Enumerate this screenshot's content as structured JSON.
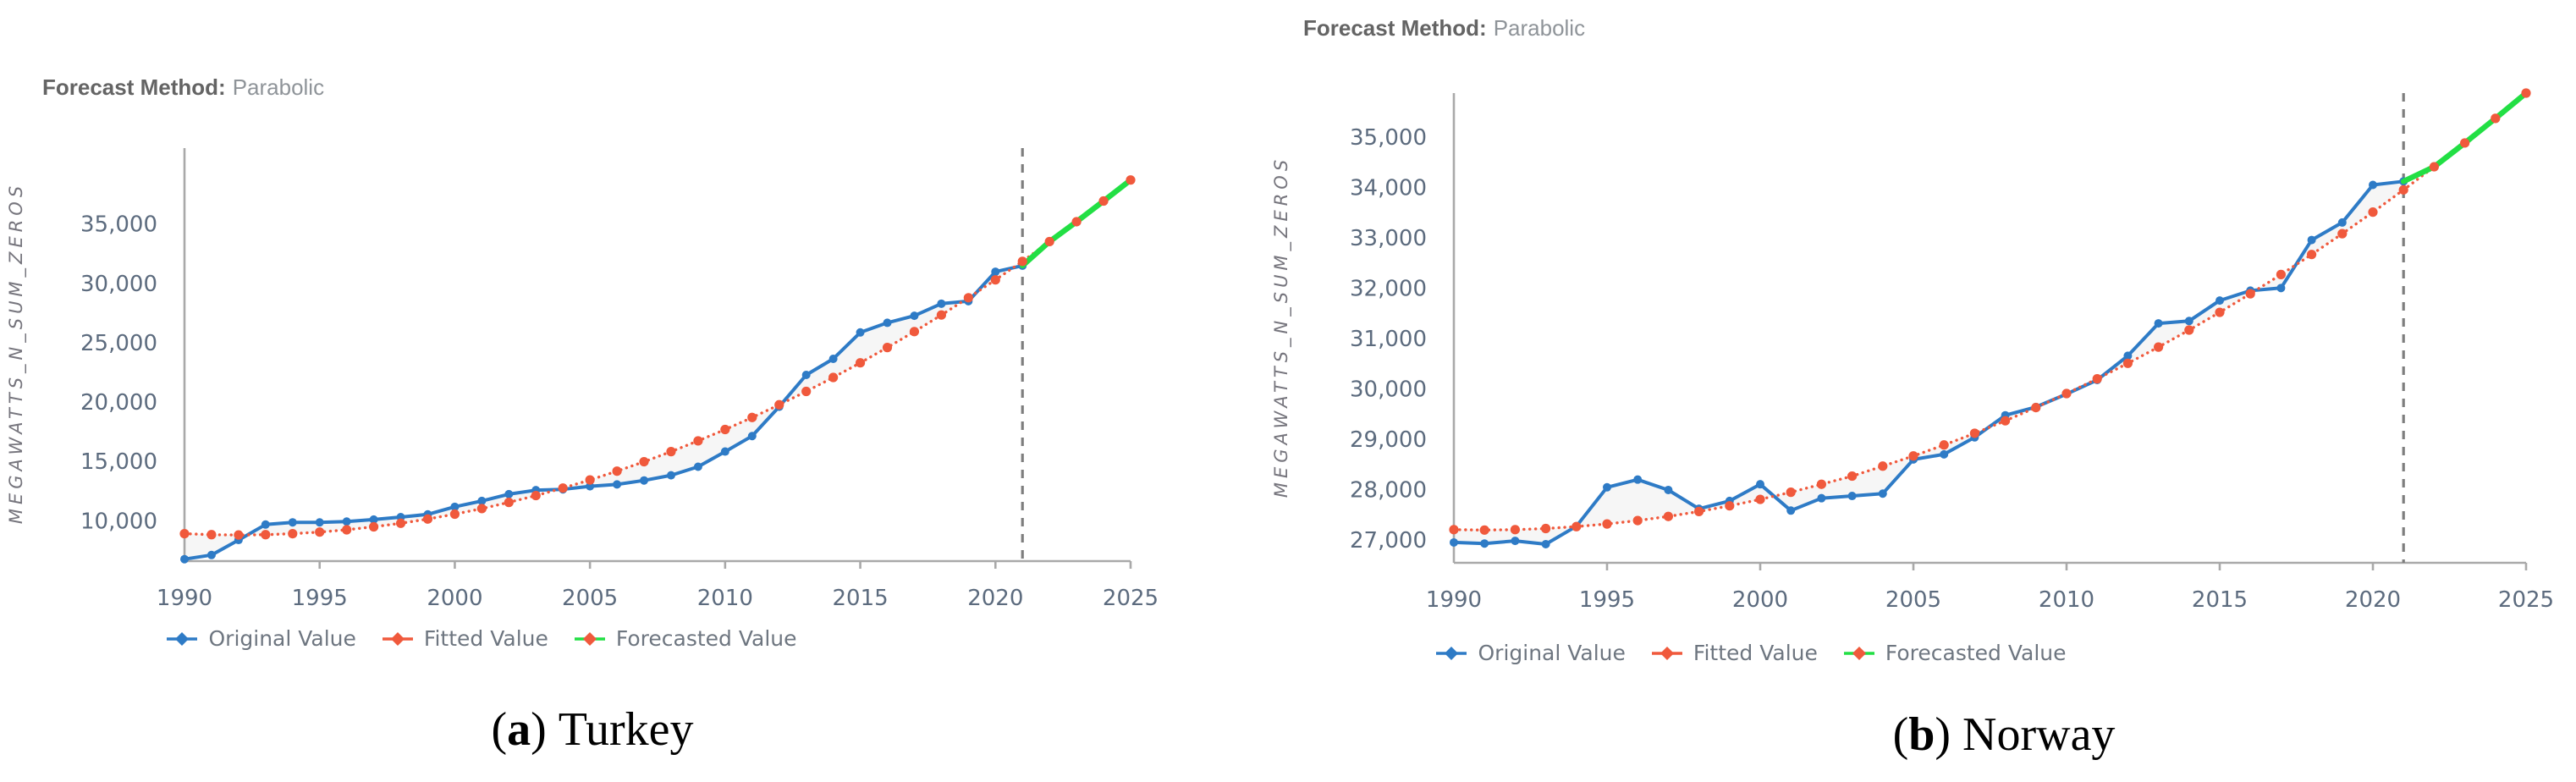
{
  "page": {
    "background": "#ffffff"
  },
  "colors": {
    "original": "#2e7bc6",
    "fitted": "#f0593c",
    "forecast": "#22df44",
    "cutoff_line": "#7e7e7e",
    "axis": "#a9a9a9",
    "tick_text": "#5c6b7e",
    "title_label": "#646464",
    "title_value": "#8f9499",
    "legend_text": "#6e7680",
    "between_fill": "rgba(130,130,130,0.07)",
    "caption": "#000000"
  },
  "panels": [
    {
      "name": "turkey",
      "title": {
        "label": "Forecast Method:",
        "value": "Parabolic"
      },
      "y_axis_label": "MEGAWATTS_N_SUM_ZEROS",
      "legend": [
        {
          "label": "Original Value",
          "line_color": "#2e7bc6",
          "marker_color": "#2e7bc6"
        },
        {
          "label": "Fitted Value",
          "line_color": "#f0593c",
          "marker_color": "#f0593c"
        },
        {
          "label": "Forecasted Value",
          "line_color": "#22df44",
          "marker_color": "#f0593c"
        }
      ],
      "caption": {
        "open": "(",
        "letter": "a",
        "close": ")",
        "text": "Turkey"
      }
    },
    {
      "name": "norway",
      "title": {
        "label": "Forecast Method:",
        "value": "Parabolic"
      },
      "y_axis_label": "MEGAWATTS_N_SUM_ZEROS",
      "legend": [
        {
          "label": "Original Value",
          "line_color": "#2e7bc6",
          "marker_color": "#2e7bc6"
        },
        {
          "label": "Fitted Value",
          "line_color": "#f0593c",
          "marker_color": "#f0593c"
        },
        {
          "label": "Forecasted Value",
          "line_color": "#22df44",
          "marker_color": "#f0593c"
        }
      ],
      "caption": {
        "open": "(",
        "letter": "b",
        "close": ")",
        "text": "Norway"
      }
    }
  ],
  "chart_data": [
    {
      "type": "line",
      "title": "Forecast Method: Parabolic",
      "xlabel": "",
      "ylabel": "MEGAWATTS_N_SUM_ZEROS",
      "grid": false,
      "legend_position": "bottom",
      "xlim": [
        1990,
        2025
      ],
      "ylim": [
        6600,
        41400
      ],
      "x_ticks": [
        1990,
        1995,
        2000,
        2005,
        2010,
        2015,
        2020,
        2025
      ],
      "y_ticks": [
        10000,
        15000,
        20000,
        25000,
        30000,
        35000
      ],
      "cutoff_x": 2021,
      "series": [
        {
          "name": "Original Value",
          "role": "original",
          "x_start": 1990,
          "values": [
            6764,
            7114,
            8379,
            9682,
            9865,
            9863,
            9935,
            10102,
            10307,
            10537,
            11175,
            11673,
            12241,
            12579,
            12645,
            12906,
            13063,
            13395,
            13829,
            14553,
            15831,
            17137,
            19609,
            22289,
            23643,
            25868,
            26681,
            27273,
            28291,
            28503,
            30984,
            31493
          ]
        },
        {
          "name": "Fitted Value",
          "role": "fitted",
          "x_start": 1990,
          "values": [
            8910,
            8827,
            8800,
            8827,
            8910,
            9047,
            9240,
            9487,
            9789,
            10146,
            10558,
            11024,
            11546,
            12122,
            12753,
            13439,
            14179,
            14975,
            15825,
            16730,
            17690,
            18704,
            19773,
            20897,
            22076,
            23309,
            24597,
            25940,
            27338,
            28790,
            30297,
            31859,
            33523,
            35198,
            36943,
            38714
          ]
        },
        {
          "name": "Forecasted Value",
          "role": "forecast",
          "x_start": 2021,
          "values": [
            31493,
            33523,
            35198,
            36943,
            38714
          ]
        }
      ]
    },
    {
      "type": "line",
      "title": "Forecast Method: Parabolic",
      "xlabel": "",
      "ylabel": "MEGAWATTS_N_SUM_ZEROS",
      "grid": false,
      "legend_position": "bottom",
      "xlim": [
        1990,
        2025
      ],
      "ylim": [
        26550,
        35870
      ],
      "x_ticks": [
        1990,
        1995,
        2000,
        2005,
        2010,
        2015,
        2020,
        2025
      ],
      "y_ticks": [
        27000,
        28000,
        29000,
        30000,
        31000,
        32000,
        33000,
        34000,
        35000
      ],
      "cutoff_x": 2021,
      "series": [
        {
          "name": "Original Value",
          "role": "original",
          "x_start": 1990,
          "values": [
            26954,
            26933,
            26985,
            26920,
            27276,
            28048,
            28201,
            27995,
            27622,
            27777,
            28109,
            27586,
            27832,
            27876,
            27923,
            28601,
            28702,
            29039,
            29477,
            29641,
            29899,
            30178,
            30658,
            31301,
            31348,
            31754,
            31951,
            32002,
            32955,
            33302,
            34048,
            34118
          ]
        },
        {
          "name": "Fitted Value",
          "role": "fitted",
          "x_start": 1990,
          "values": [
            27208,
            27200,
            27208,
            27230,
            27268,
            27320,
            27388,
            27470,
            27568,
            27680,
            27808,
            27950,
            28108,
            28270,
            28468,
            28670,
            28888,
            29120,
            29368,
            29630,
            29908,
            30200,
            30508,
            30830,
            31168,
            31520,
            31888,
            32270,
            32668,
            33080,
            33508,
            33950,
            34408,
            34880,
            35368,
            35870
          ]
        },
        {
          "name": "Forecasted Value",
          "role": "forecast",
          "x_start": 2021,
          "values": [
            34118,
            34408,
            34880,
            35368,
            35870
          ]
        }
      ]
    }
  ]
}
